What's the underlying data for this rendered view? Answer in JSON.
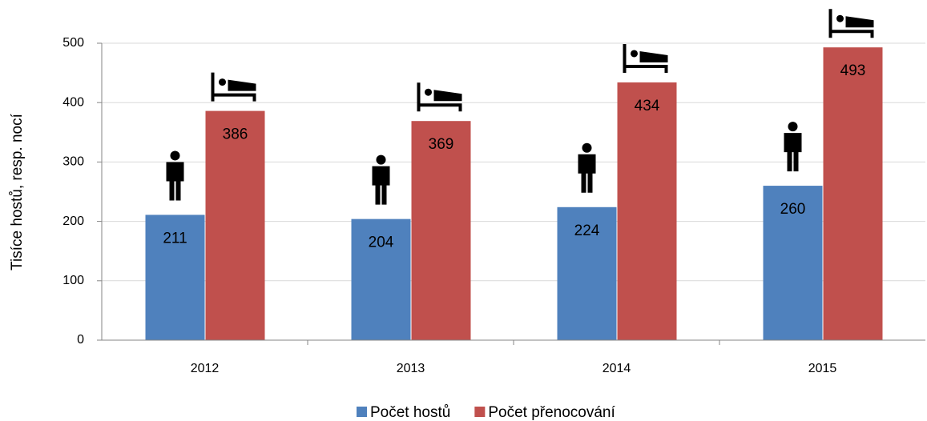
{
  "chart_data": {
    "type": "bar",
    "categories": [
      "2012",
      "2013",
      "2014",
      "2015"
    ],
    "series": [
      {
        "name": "Počet hostů",
        "color": "#4f81bd",
        "values": [
          211,
          204,
          224,
          260
        ]
      },
      {
        "name": "Počet přenocování",
        "color": "#c0504d",
        "values": [
          386,
          369,
          434,
          493
        ]
      }
    ],
    "y_axis_label": "Tisíce hostů, resp. nocí",
    "ylim": [
      0,
      500
    ],
    "yticks": [
      0,
      100,
      200,
      300,
      400,
      500
    ],
    "grid": true,
    "legend": "bottom"
  }
}
